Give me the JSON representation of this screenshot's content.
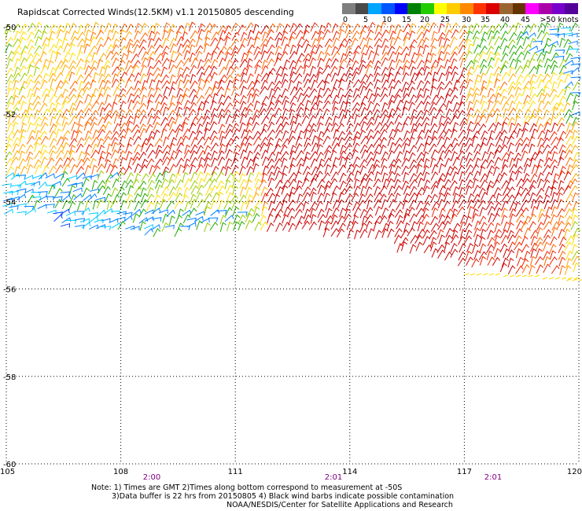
{
  "title": "Rapidscat Corrected Winds(12.5KM) v1.1 20150805 descending",
  "legend": {
    "unit_label": ">50 knots",
    "ticks": [
      "0",
      "5",
      "10",
      "15",
      "20",
      "25",
      "30",
      "35",
      "40",
      "45",
      ">50 knots"
    ],
    "colors": [
      "#7f7f7f",
      "#4a4a4a",
      "#00a6ff",
      "#0055ff",
      "#0000ff",
      "#008000",
      "#22cc00",
      "#ffff00",
      "#ffcc00",
      "#ff8800",
      "#ff3300",
      "#dd0000",
      "#996633",
      "#663300",
      "#ff00ff",
      "#aa00aa",
      "#7700cc",
      "#550099"
    ]
  },
  "map": {
    "lat_labels": [
      "-50",
      "-52",
      "-54",
      "-56",
      "-58",
      "-60"
    ],
    "lon_labels": [
      "105",
      "108",
      "111",
      "114",
      "117",
      "120"
    ],
    "time_labels": [
      "2:00",
      "2:01",
      "2:01"
    ],
    "time_color": "#800080",
    "grid": "dotted"
  },
  "note": {
    "line1": "Note: 1) Times are GMT 2)Times along bottom correspond to measurement at -50S",
    "line2": "3)Data buffer is 22 hrs from 20150805 4) Black wind barbs indicate possible contamination",
    "line3": "NOAA/NESDIS/Center for Satellite Applications and Research"
  }
}
